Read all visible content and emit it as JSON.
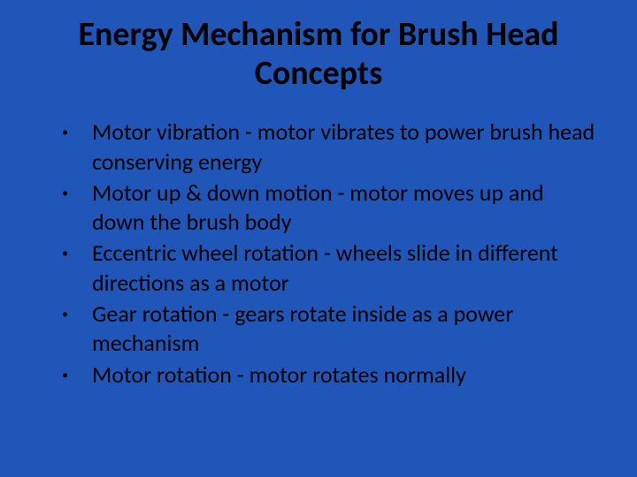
{
  "slide": {
    "background_color": "#1f56b8",
    "text_color": "#000000",
    "title": "Energy Mechanism for Brush Head Concepts",
    "title_fontsize": 38,
    "title_fontweight": 700,
    "body_fontsize": 26,
    "bullet_glyph": "•",
    "bullets": [
      "Motor vibration - motor vibrates to power brush head conserving energy",
      "Motor up & down motion - motor moves up and down the brush body",
      "Eccentric wheel rotation - wheels slide in different directions as a motor",
      "Gear rotation - gears rotate inside as a power mechanism",
      "Motor rotation - motor rotates normally"
    ]
  }
}
